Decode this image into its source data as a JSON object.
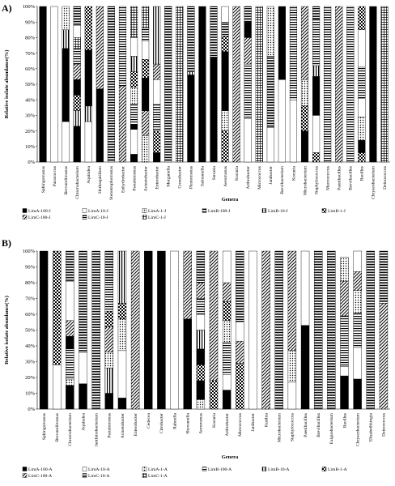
{
  "chart_data": [
    {
      "panel_label": "A)",
      "type": "bar",
      "stacked": true,
      "xlabel": "Genera",
      "ylabel": "Relative isolate abundance(%)",
      "ylim": [
        0,
        100
      ],
      "yticks": [
        "0%",
        "10%",
        "20%",
        "30%",
        "40%",
        "50%",
        "60%",
        "70%",
        "80%",
        "90%",
        "100%"
      ],
      "legend_position": "bottom",
      "series_names": [
        "LimA-100-J",
        "LimA-10-J",
        "LimA-1-J",
        "LimB-100-J",
        "LimB-10-J",
        "LimB-1-J",
        "LimC-100-J",
        "LimC-10-J",
        "LimC-1-J"
      ],
      "series_patterns": [
        "black",
        "white",
        "dots",
        "hlines",
        "vlines",
        "check",
        "diag",
        "dense",
        "grid"
      ],
      "categories": [
        "Sphingomonas",
        "Paracoccus",
        "Brevundimonas",
        "Chromobacterium",
        "Aquitalea",
        "Herbaspirillum",
        "Stenotrophomonas",
        "Enhydrobacter",
        "Pseudomonas",
        "Acinetobacter",
        "Enterobacter",
        "Morganella",
        "Cronobacter",
        "Plesiomonas",
        "Salmonella",
        "Serratia",
        "Aeromonas",
        "Kocuria",
        "Arthrobacter",
        "Micrococcus",
        "Janibacter",
        "Brevibacterium",
        "Kocuria",
        "Microbacterium",
        "Staphylococcus",
        "Macrococcus",
        "Paenibacillus",
        "Brevibacillus",
        "Bacillus",
        "Chryseobacterium",
        "Deinococcus"
      ],
      "stacks": [
        [
          [
            0,
            1
          ]
        ],
        [
          [
            1,
            1
          ]
        ],
        [
          [
            1,
            0.26
          ],
          [
            0,
            0.47
          ],
          [
            4,
            0.12
          ],
          [
            2,
            0.15
          ]
        ],
        [
          [
            0,
            0.23
          ],
          [
            4,
            0.1
          ],
          [
            5,
            0.1
          ],
          [
            0,
            0.1
          ],
          [
            6,
            0.1
          ],
          [
            3,
            0.1
          ],
          [
            8,
            0.07
          ],
          [
            1,
            0.08
          ],
          [
            7,
            0.12
          ]
        ],
        [
          [
            1,
            0.26
          ],
          [
            4,
            0.1
          ],
          [
            0,
            0.36
          ],
          [
            5,
            0.28
          ]
        ],
        [
          [
            0,
            0.47
          ],
          [
            6,
            0.53
          ]
        ],
        [
          [
            7,
            1
          ]
        ],
        [
          [
            6,
            0.49
          ],
          [
            3,
            0.51
          ]
        ],
        [
          [
            0,
            0.05
          ],
          [
            1,
            0.16
          ],
          [
            0,
            0.03
          ],
          [
            3,
            0.13
          ],
          [
            2,
            0.11
          ],
          [
            5,
            0.1
          ],
          [
            4,
            0.1
          ],
          [
            1,
            0.12
          ],
          [
            8,
            0.2
          ]
        ],
        [
          [
            2,
            0.17
          ],
          [
            6,
            0.16
          ],
          [
            0,
            0.21
          ],
          [
            5,
            0.12
          ],
          [
            1,
            0.12
          ],
          [
            3,
            0.08
          ],
          [
            8,
            0.14
          ]
        ],
        [
          [
            0,
            0.06
          ],
          [
            5,
            0.14
          ],
          [
            3,
            0.17
          ],
          [
            1,
            0.16
          ],
          [
            6,
            0.1
          ],
          [
            4,
            0.37
          ]
        ],
        [
          [
            7,
            1
          ]
        ],
        [
          [
            8,
            1
          ]
        ],
        [
          [
            0,
            0.56
          ],
          [
            4,
            0.02
          ],
          [
            7,
            0.42
          ]
        ],
        [
          [
            0,
            1
          ]
        ],
        [
          [
            0,
            0.67
          ],
          [
            7,
            0.33
          ]
        ],
        [
          [
            5,
            0.2
          ],
          [
            2,
            0.13
          ],
          [
            0,
            0.38
          ],
          [
            5,
            0.1
          ],
          [
            7,
            0.09
          ],
          [
            1,
            0.1
          ]
        ],
        [
          [
            6,
            1
          ]
        ],
        [
          [
            1,
            0.28
          ],
          [
            3,
            0.35
          ],
          [
            6,
            0.17
          ],
          [
            0,
            0.1
          ],
          [
            7,
            0.1
          ]
        ],
        [
          [
            8,
            1
          ]
        ],
        [
          [
            1,
            0.22
          ],
          [
            7,
            0.46
          ],
          [
            2,
            0.32
          ]
        ],
        [
          [
            1,
            0.53
          ],
          [
            0,
            0.47
          ]
        ],
        [
          [
            1,
            0.4
          ],
          [
            3,
            0.6
          ]
        ],
        [
          [
            0,
            0.2
          ],
          [
            5,
            0.16
          ],
          [
            2,
            0.17
          ],
          [
            6,
            0.47
          ]
        ],
        [
          [
            5,
            0.06
          ],
          [
            1,
            0.24
          ],
          [
            0,
            0.25
          ],
          [
            4,
            0.07
          ],
          [
            3,
            0.3
          ],
          [
            7,
            0.08
          ]
        ],
        [
          [
            3,
            1
          ]
        ],
        [
          [
            6,
            1
          ]
        ],
        [
          [
            3,
            1
          ]
        ],
        [
          [
            5,
            0.06
          ],
          [
            0,
            0.08
          ],
          [
            2,
            0.15
          ],
          [
            1,
            0.12
          ],
          [
            3,
            0.2
          ],
          [
            1,
            0.24
          ],
          [
            5,
            0.15
          ]
        ],
        [
          [
            0,
            1
          ]
        ],
        [
          [
            8,
            1
          ]
        ]
      ]
    },
    {
      "panel_label": "B)",
      "type": "bar",
      "stacked": true,
      "xlabel": "Genera",
      "ylabel": "Relative isolate abundance(%)",
      "ylim": [
        0,
        100
      ],
      "yticks": [
        "0%",
        "10%",
        "20%",
        "30%",
        "40%",
        "50%",
        "60%",
        "70%",
        "80%",
        "90%",
        "100%"
      ],
      "legend_position": "bottom",
      "series_names": [
        "LimA-100-A",
        "LimA-10-A",
        "LimA-1-A",
        "LimB-100-A",
        "LimB-10-A",
        "LimB-1-A",
        "LimC-100-A",
        "LimC-10-A",
        "LimC-1-A"
      ],
      "series_patterns": [
        "black",
        "white",
        "dots",
        "hlines",
        "vlines",
        "check",
        "diag",
        "dense",
        "grid"
      ],
      "categories": [
        "Sphingomonas",
        "Brevundimonas",
        "Chromobacterium",
        "Aquitalea",
        "Janthinobacterium",
        "Pseudomonas",
        "Acinetobacter",
        "Enterobacter",
        "Cedecea",
        "Citrobacter",
        "Rahnella",
        "Shewanella",
        "Aeromonas",
        "Kocuria",
        "Arthrobacter",
        "Micrococcus",
        "Janibacter",
        "Kurthia",
        "Microbacterium",
        "Staphylococcus",
        "Paenibacillus",
        "Brevibacillus",
        "Exiguobacterium",
        "Bacillus",
        "Chryseobacterium",
        "Elizabethkingia",
        "Deinococcus"
      ],
      "stacks": [
        [
          [
            0,
            1
          ]
        ],
        [
          [
            1,
            0.28
          ],
          [
            5,
            0.72
          ]
        ],
        [
          [
            0,
            0.15
          ],
          [
            2,
            0.04
          ],
          [
            3,
            0.19
          ],
          [
            0,
            0.08
          ],
          [
            6,
            0.1
          ],
          [
            1,
            0.25
          ],
          [
            7,
            0.19
          ]
        ],
        [
          [
            0,
            0.16
          ],
          [
            1,
            0.2
          ],
          [
            7,
            0.64
          ]
        ],
        [
          [
            7,
            1
          ]
        ],
        [
          [
            0,
            0.1
          ],
          [
            4,
            0.16
          ],
          [
            2,
            0.1
          ],
          [
            6,
            0.16
          ],
          [
            5,
            0.1
          ],
          [
            3,
            0.18
          ],
          [
            7,
            0.2
          ]
        ],
        [
          [
            0,
            0.07
          ],
          [
            1,
            0.3
          ],
          [
            2,
            0.2
          ],
          [
            5,
            0.1
          ],
          [
            4,
            0.33
          ]
        ],
        [
          [
            6,
            1
          ]
        ],
        [
          [
            0,
            1
          ]
        ],
        [
          [
            0,
            1
          ]
        ],
        [
          [
            1,
            1
          ]
        ],
        [
          [
            0,
            0.57
          ],
          [
            6,
            0.43
          ]
        ],
        [
          [
            2,
            0.06
          ],
          [
            0,
            0.12
          ],
          [
            5,
            0.1
          ],
          [
            0,
            0.1
          ],
          [
            4,
            0.12
          ],
          [
            1,
            0.1
          ],
          [
            3,
            0.1
          ],
          [
            6,
            0.1
          ],
          [
            7,
            0.2
          ]
        ],
        [
          [
            5,
            0.18
          ],
          [
            6,
            0.82
          ]
        ],
        [
          [
            0,
            0.12
          ],
          [
            1,
            0.1
          ],
          [
            3,
            0.2
          ],
          [
            2,
            0.14
          ],
          [
            5,
            0.12
          ],
          [
            6,
            0.12
          ],
          [
            1,
            0.2
          ]
        ],
        [
          [
            5,
            0.29
          ],
          [
            6,
            0.14
          ],
          [
            1,
            0.12
          ],
          [
            7,
            0.45
          ]
        ],
        [
          [
            1,
            1
          ]
        ],
        [
          [
            6,
            1
          ]
        ],
        [
          [
            7,
            1
          ]
        ],
        [
          [
            1,
            0.17
          ],
          [
            2,
            0.2
          ],
          [
            6,
            0.63
          ]
        ],
        [
          [
            0,
            0.53
          ],
          [
            1,
            0.47
          ]
        ],
        [
          [
            7,
            1
          ]
        ],
        [
          [
            7,
            1
          ]
        ],
        [
          [
            0,
            0.21
          ],
          [
            1,
            0.06
          ],
          [
            3,
            0.32
          ],
          [
            6,
            0.22
          ],
          [
            2,
            0.15
          ]
        ],
        [
          [
            0,
            0.19
          ],
          [
            1,
            0.2
          ],
          [
            3,
            0.22
          ],
          [
            2,
            0.14
          ],
          [
            6,
            0.12
          ],
          [
            1,
            0.13
          ]
        ],
        [
          [
            7,
            1
          ]
        ],
        [
          [
            6,
            0.67
          ],
          [
            7,
            0.33
          ]
        ]
      ]
    }
  ]
}
